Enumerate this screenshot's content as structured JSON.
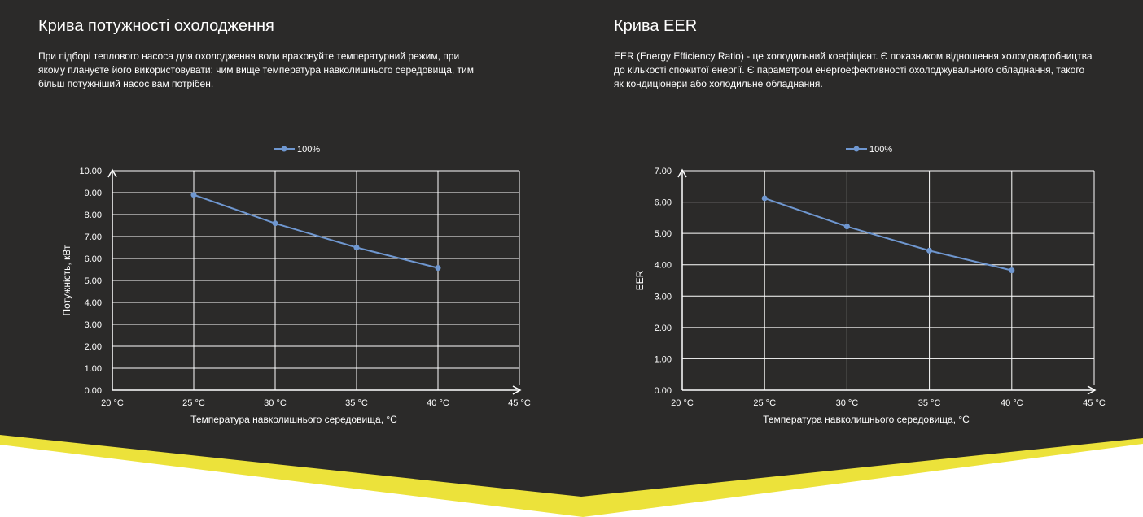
{
  "colors": {
    "background": "#2b2a29",
    "accent": "#ece23a",
    "series": "#6f97d0",
    "grid": "#ffffff",
    "text": "#ffffff"
  },
  "sections": [
    {
      "title": "Крива потужності охолодження",
      "description": "При підборі теплового насоса для охолодження води враховуйте температурний режим, при якому плануєте його використовувати: чим вище температура навколишнього середовища, тим більш потужніший насос вам потрібен."
    },
    {
      "title": "Крива EER",
      "description": "EER (Energy Efficiency Ratio) - це холодильний коефіцієнт. Є показником відношення холодовиробництва до кількості спожитої енергії. Є параметром енергоефективності охолоджувального обладнання, такого як кондиціонери або холодильне обладнання."
    }
  ],
  "chart_data": [
    {
      "type": "line",
      "categories": [
        "20 °C",
        "25 °C",
        "30 °C",
        "35 °C",
        "40 °C",
        "45 °C"
      ],
      "series": [
        {
          "name": "100%",
          "values": [
            null,
            8.9,
            7.6,
            6.5,
            5.57,
            null
          ]
        }
      ],
      "xlabel": "Температура навколишнього середовища, °С",
      "ylabel": "Потужність, кВт",
      "ylim": [
        0,
        10
      ],
      "yticks": [
        "0.00",
        "1.00",
        "2.00",
        "3.00",
        "4.00",
        "5.00",
        "6.00",
        "7.00",
        "8.00",
        "9.00",
        "10.00"
      ],
      "legend": "top-center",
      "grid": true
    },
    {
      "type": "line",
      "categories": [
        "20 °C",
        "25 °C",
        "30 °C",
        "35 °C",
        "40 °C",
        "45 °C"
      ],
      "series": [
        {
          "name": "100%",
          "values": [
            null,
            6.12,
            5.22,
            4.45,
            3.82,
            null
          ]
        }
      ],
      "xlabel": "Температура навколишнього середовища, °С",
      "ylabel": "EER",
      "ylim": [
        0,
        7
      ],
      "yticks": [
        "0.00",
        "1.00",
        "2.00",
        "3.00",
        "4.00",
        "5.00",
        "6.00",
        "7.00"
      ],
      "legend": "top-center",
      "grid": true
    }
  ]
}
